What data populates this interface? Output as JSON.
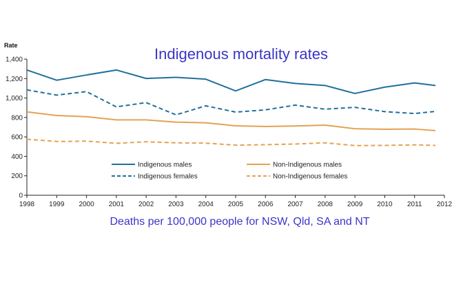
{
  "chart_data": {
    "type": "line",
    "title": "Indigenous mortality rates",
    "subtitle": "Deaths per 100,000 people for NSW, Qld, SA and NT",
    "ylabel": "Rate",
    "xlabel": "",
    "xlim": [
      1998,
      2012
    ],
    "ylim": [
      0,
      1400
    ],
    "x_ticks": [
      "1998",
      "1999",
      "2000",
      "2001",
      "2002",
      "2003",
      "2004",
      "2005",
      "2006",
      "2007",
      "2008",
      "2009",
      "2010",
      "2011",
      "2012"
    ],
    "y_ticks": [
      "0",
      "200",
      "400",
      "600",
      "800",
      "1,000",
      "1,200",
      "1,400"
    ],
    "y_tick_values": [
      0,
      200,
      400,
      600,
      800,
      1000,
      1200,
      1400
    ],
    "grid": false,
    "legend_position": "bottom-center",
    "x": [
      1998,
      1999,
      2000,
      2001,
      2002,
      2003,
      2004,
      2005,
      2006,
      2007,
      2008,
      2009,
      2010,
      2011,
      2011.7
    ],
    "series": [
      {
        "name": "Indigenous males",
        "color": "#1f6f9a",
        "dashed": false,
        "values": [
          1288,
          1183,
          1237,
          1288,
          1201,
          1213,
          1194,
          1073,
          1190,
          1150,
          1129,
          1047,
          1112,
          1155,
          1129
        ]
      },
      {
        "name": "Non-Indigenous males",
        "color": "#e3a24f",
        "dashed": false,
        "values": [
          857,
          820,
          808,
          775,
          775,
          752,
          745,
          714,
          707,
          712,
          721,
          684,
          679,
          681,
          665
        ]
      },
      {
        "name": "Indigenous females",
        "color": "#1f6f9a",
        "dashed": true,
        "values": [
          1084,
          1030,
          1066,
          909,
          953,
          827,
          920,
          855,
          878,
          927,
          885,
          904,
          860,
          841,
          862
        ]
      },
      {
        "name": "Non-Indigenous females",
        "color": "#e3a24f",
        "dashed": true,
        "values": [
          576,
          553,
          557,
          534,
          550,
          539,
          536,
          515,
          520,
          527,
          539,
          511,
          513,
          518,
          513
        ]
      }
    ],
    "title_color": "#3a35c8"
  }
}
